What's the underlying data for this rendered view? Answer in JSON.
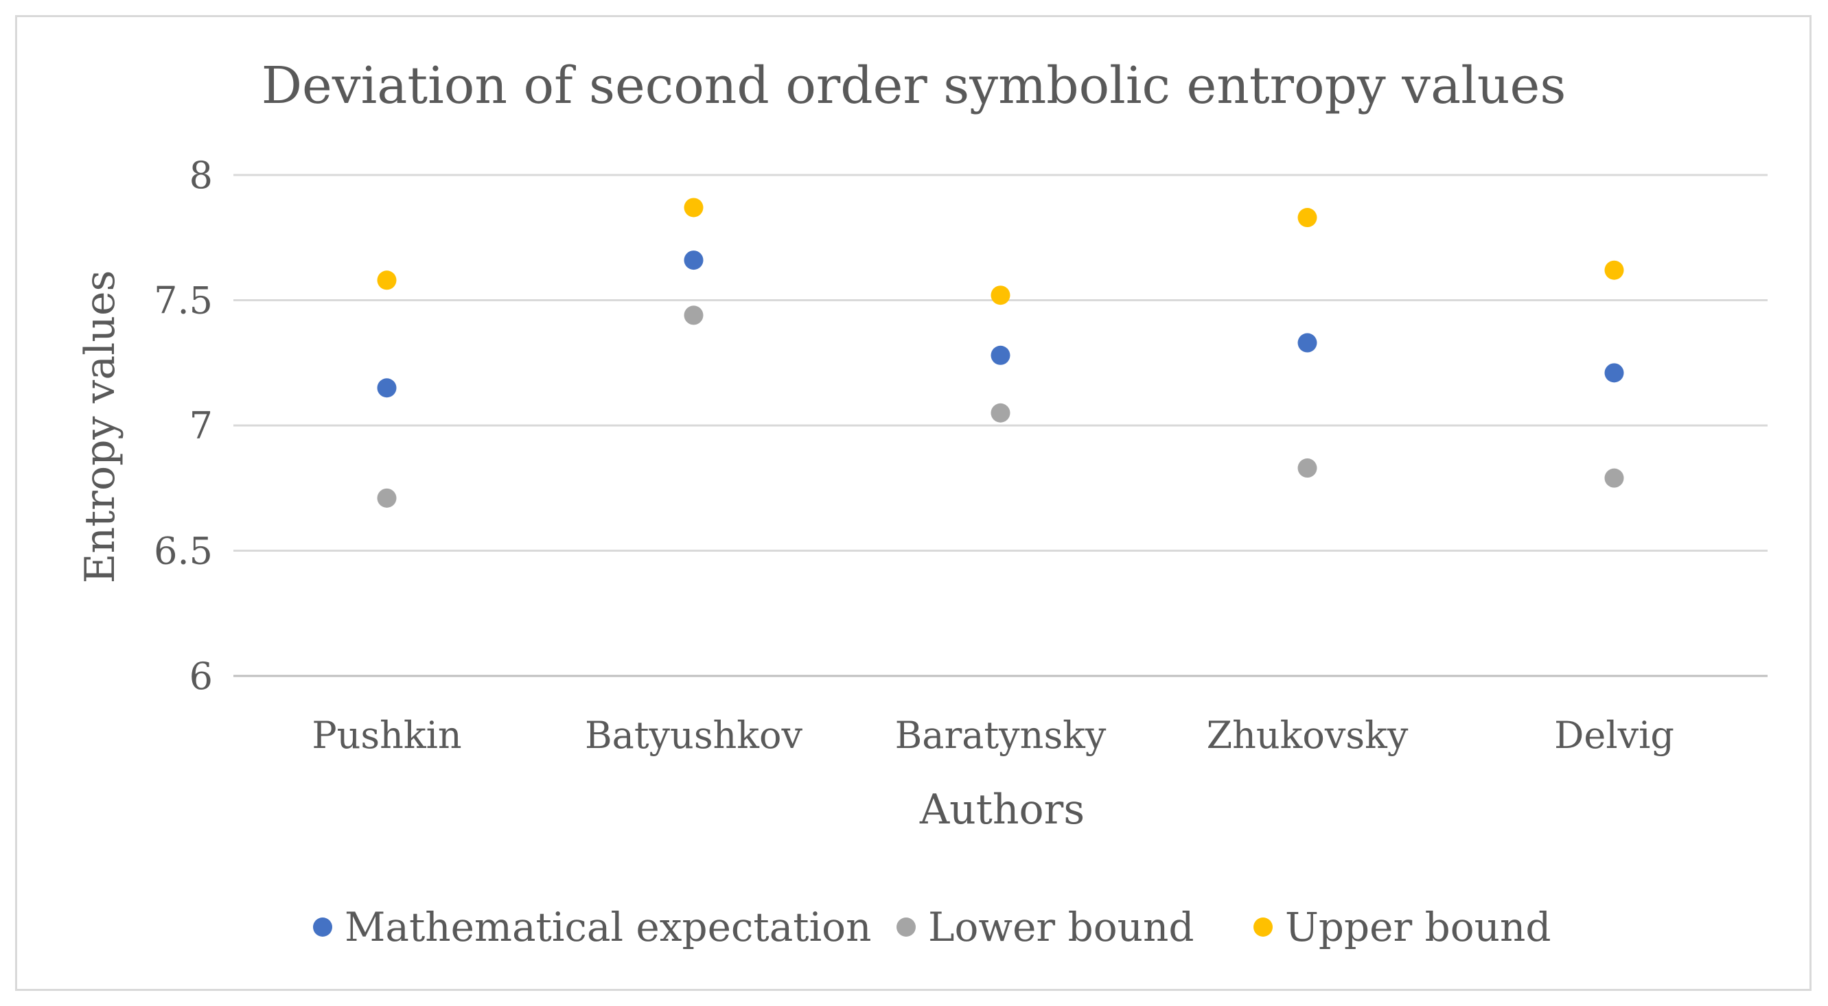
{
  "chart_data": {
    "type": "scatter",
    "title": "Deviation of second order symbolic entropy values",
    "xlabel": "Authors",
    "ylabel": "Entropy values",
    "categories": [
      "Pushkin",
      "Batyushkov",
      "Baratynsky",
      "Zhukovsky",
      "Delvig"
    ],
    "ylim": [
      6,
      8
    ],
    "yticks": [
      "6",
      "6.5",
      "7",
      "7.5",
      "8"
    ],
    "ytick_values": [
      6,
      6.5,
      7,
      7.5,
      8
    ],
    "grid": true,
    "legend_position": "bottom",
    "series": [
      {
        "name": "Mathematical expectation",
        "color": "#4472c4",
        "values": [
          7.15,
          7.66,
          7.28,
          7.33,
          7.21
        ]
      },
      {
        "name": "Lower bound",
        "color": "#a5a5a5",
        "values": [
          6.71,
          7.44,
          7.05,
          6.83,
          6.79
        ]
      },
      {
        "name": "Upper bound",
        "color": "#ffc000",
        "values": [
          7.58,
          7.87,
          7.52,
          7.83,
          7.62
        ]
      }
    ]
  }
}
